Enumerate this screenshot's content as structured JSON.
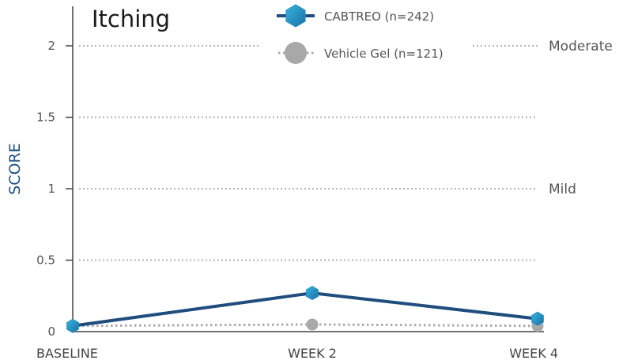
{
  "chart_data": {
    "type": "line",
    "title": "Itching",
    "ylabel": "SCORE",
    "xlabel": "",
    "categories": [
      "BASELINE",
      "WEEK 2",
      "WEEK 4"
    ],
    "ylim": [
      0,
      2.2
    ],
    "yticks": [
      0,
      0.5,
      1,
      1.5,
      2
    ],
    "ytick_labels": [
      "0",
      "0.5",
      "1",
      "1.5",
      "2"
    ],
    "grid": "dotted horizontal",
    "reference_lines": [
      {
        "value": 2,
        "label": "Moderate"
      },
      {
        "value": 1,
        "label": "Mild"
      }
    ],
    "series": [
      {
        "name": "CABTREO (n=242)",
        "values": [
          0.04,
          0.27,
          0.09
        ],
        "color": "#1f4e7e",
        "marker_color": "#2b9bc9",
        "style": "solid",
        "marker": "hexagon"
      },
      {
        "name": "Vehicle Gel (n=121)",
        "values": [
          0.04,
          0.05,
          0.04
        ],
        "color": "#aaaaaa",
        "marker_color": "#a8a8a8",
        "style": "dotted",
        "marker": "circle"
      }
    ],
    "legend": "top-center"
  }
}
